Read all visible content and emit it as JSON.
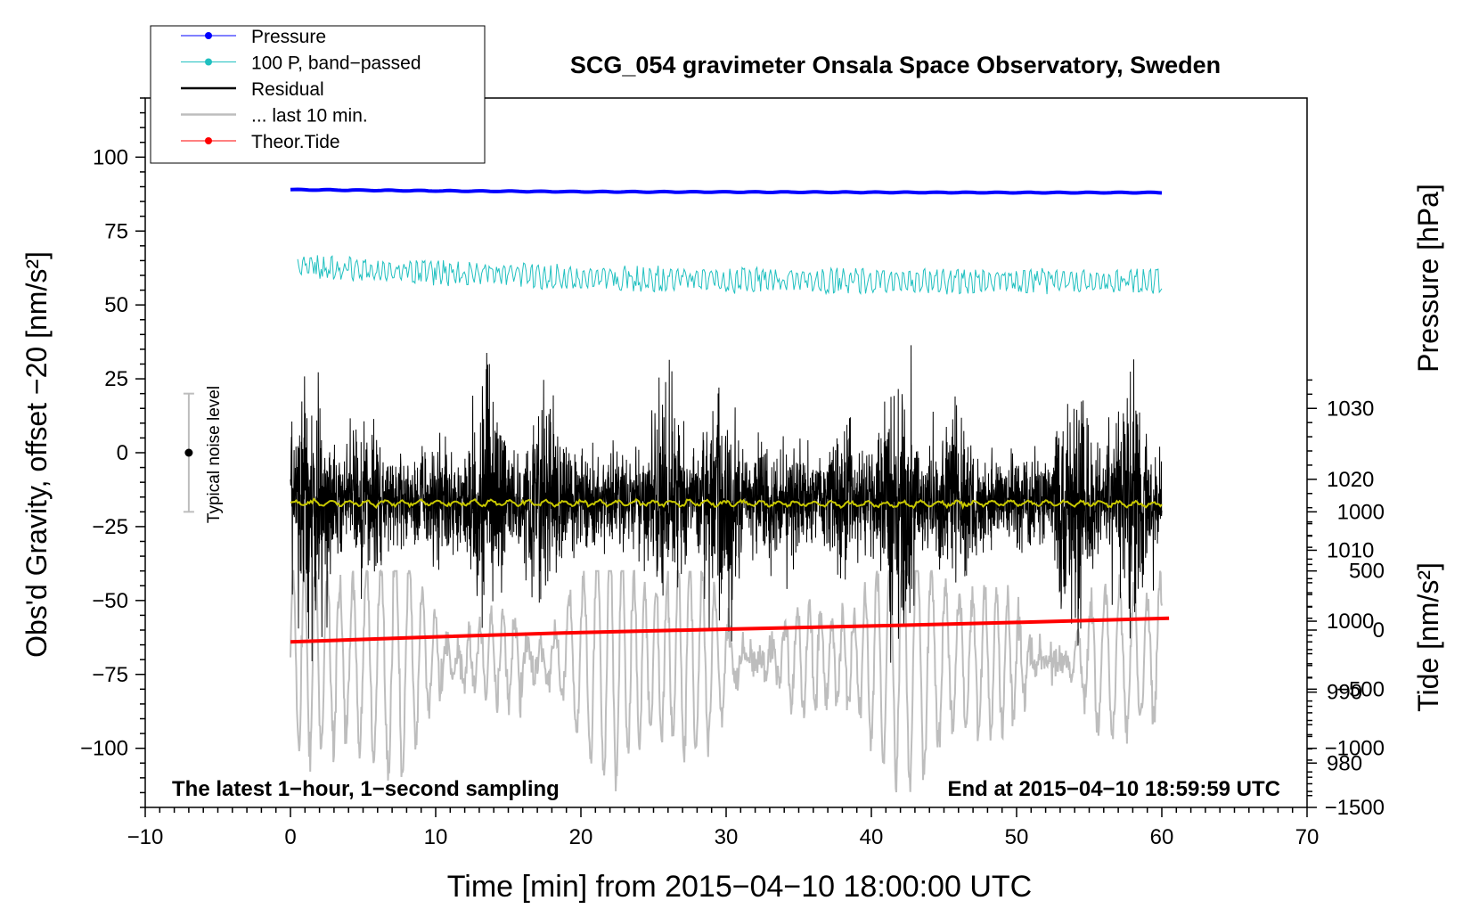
{
  "chart_data": {
    "type": "line",
    "title": "SCG_054 gravimeter Onsala Space Observatory, Sweden",
    "xlabel": "Time [min] from 2015−04−10 18:00:00 UTC",
    "ylabel_left": "Obs'd Gravity, offset −20 [nm/s²]",
    "ylabel_pressure": "Pressure [hPa]",
    "ylabel_tide": "Tide [nm/s²]",
    "xlim": [
      -10,
      70
    ],
    "ylim_left": [
      -120,
      120
    ],
    "x_ticks": [
      {
        "v": -10,
        "label": "−10"
      },
      {
        "v": 0,
        "label": "0"
      },
      {
        "v": 10,
        "label": "10"
      },
      {
        "v": 20,
        "label": "20"
      },
      {
        "v": 30,
        "label": "30"
      },
      {
        "v": 40,
        "label": "40"
      },
      {
        "v": 50,
        "label": "50"
      },
      {
        "v": 60,
        "label": "60"
      },
      {
        "v": 70,
        "label": "70"
      }
    ],
    "y_ticks_left": [
      {
        "v": 100,
        "label": "100"
      },
      {
        "v": 75,
        "label": "75"
      },
      {
        "v": 50,
        "label": "50"
      },
      {
        "v": 25,
        "label": "25"
      },
      {
        "v": 0,
        "label": "0"
      },
      {
        "v": -25,
        "label": "−25"
      },
      {
        "v": -50,
        "label": "−50"
      },
      {
        "v": -75,
        "label": "−75"
      },
      {
        "v": -100,
        "label": "−100"
      }
    ],
    "y_ticks_pressure": [
      {
        "v": 1030,
        "label": "1030"
      },
      {
        "v": 1020,
        "label": "1020"
      },
      {
        "v": 1010,
        "label": "1010"
      },
      {
        "v": 1000,
        "label": "1000"
      },
      {
        "v": 990,
        "label": "990"
      },
      {
        "v": 980,
        "label": "980"
      }
    ],
    "pressure_axis_map": {
      "hpa": [
        980,
        1030
      ],
      "left_units": [
        -105,
        15
      ]
    },
    "y_ticks_tide": [
      {
        "v": 1000,
        "label": "1000"
      },
      {
        "v": 500,
        "label": "500"
      },
      {
        "v": 0,
        "label": "0"
      },
      {
        "v": -500,
        "label": "−500"
      },
      {
        "v": -1000,
        "label": "−1000"
      },
      {
        "v": -1500,
        "label": "−1500"
      }
    ],
    "tide_axis_map": {
      "tide": [
        -1500,
        1000
      ],
      "left_units": [
        -120,
        -20
      ]
    },
    "series": [
      {
        "name": "Pressure",
        "color": "#0000ff",
        "x": [
          0,
          10,
          20,
          30,
          40,
          50,
          60
        ],
        "y": [
          89,
          88.6,
          88.3,
          88.2,
          88.1,
          88.0,
          88.0
        ]
      },
      {
        "name": "100 P, band−passed",
        "color": "#20c0c0",
        "x": [
          0,
          10,
          20,
          30,
          40,
          50,
          60
        ],
        "y": [
          63,
          61,
          59,
          58.5,
          58,
          58,
          58
        ]
      },
      {
        "name": "Residual",
        "color": "#000000",
        "x": [
          0,
          10,
          20,
          30,
          40,
          50,
          60
        ],
        "y": [
          -16,
          -16,
          -16,
          -16,
          -16,
          -16,
          -16
        ]
      },
      {
        "name": "... last 10 min.",
        "color": "#bdbdbd",
        "x": [
          0,
          10,
          20,
          30,
          40,
          50,
          60
        ],
        "y": [
          -70,
          -70,
          -70,
          -70,
          -70,
          -70,
          -70
        ]
      },
      {
        "name": "Theor.Tide",
        "color": "#ff0000",
        "x": [
          0,
          10,
          20,
          30,
          40,
          50,
          60.5
        ],
        "y": [
          -64,
          -62.3,
          -60.8,
          -59.7,
          -58.6,
          -57.4,
          -56
        ]
      },
      {
        "name": "Residual mean",
        "color": "#c8c800",
        "x": [
          0,
          10,
          20,
          30,
          40,
          50,
          60
        ],
        "y": [
          -17,
          -17,
          -17,
          -17,
          -17.5,
          -17,
          -17.5
        ]
      }
    ],
    "noise_bar": {
      "x": -7,
      "center": 0,
      "low": -20,
      "high": 20,
      "label": "Typical noise level"
    },
    "annotations": {
      "bottom_left": "The latest 1−hour, 1−second sampling",
      "bottom_right": "End at 2015−04−10 18:59:59 UTC"
    },
    "legend": {
      "position": "top-left",
      "entries": [
        {
          "label": "Pressure",
          "color": "#0000ff",
          "marker": true
        },
        {
          "label": "100 P, band−passed",
          "color": "#20c0c0",
          "marker": true
        },
        {
          "label": "Residual",
          "color": "#000000",
          "marker": false
        },
        {
          "label": "... last 10 min.",
          "color": "#bdbdbd",
          "marker": false
        },
        {
          "label": "Theor.Tide",
          "color": "#ff0000",
          "marker": true
        }
      ]
    }
  }
}
